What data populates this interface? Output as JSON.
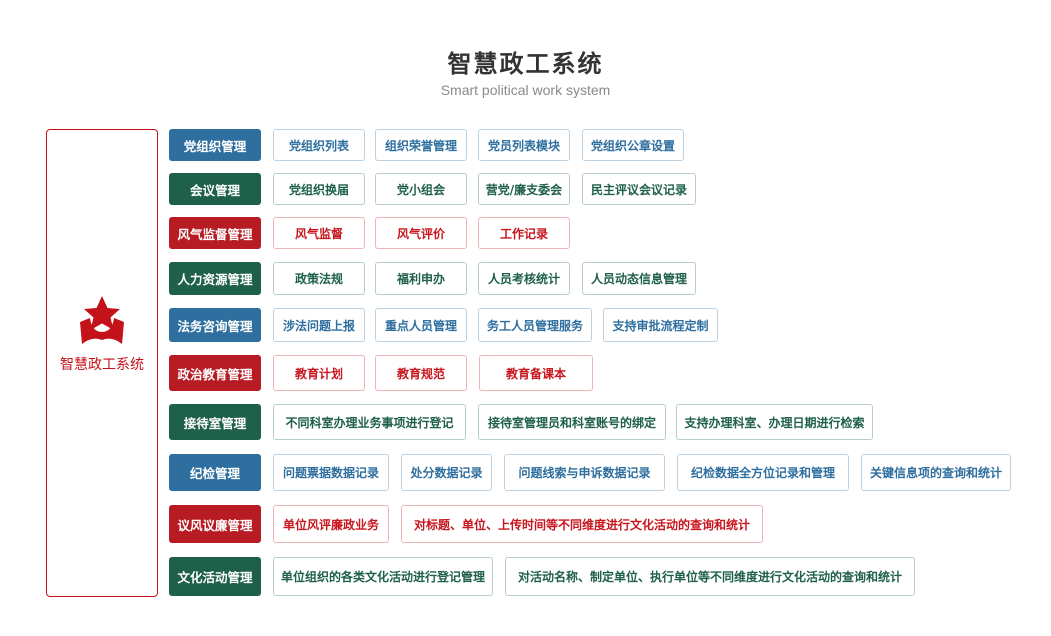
{
  "header": {
    "title": "智慧政工系统",
    "subtitle": "Smart political work system"
  },
  "sidebar": {
    "label": "智慧政工系统",
    "icon": "party-star-icon",
    "color": "#c4121b"
  },
  "colors": {
    "blue": "#2f6f9f",
    "green": "#1f604b",
    "red": "#b71c24"
  },
  "modules": [
    {
      "name": "党组织管理",
      "theme": "blue",
      "items": [
        "党组织列表",
        "组织荣誉管理",
        "党员列表模块",
        "党组织公章设置"
      ]
    },
    {
      "name": "会议管理",
      "theme": "green",
      "items": [
        "党组织换届",
        "党小组会",
        "营党/廉支委会",
        "民主评议会议记录"
      ]
    },
    {
      "name": "风气监督管理",
      "theme": "red",
      "items": [
        "风气监督",
        "风气评价",
        "工作记录"
      ]
    },
    {
      "name": "人力资源管理",
      "theme": "green",
      "items": [
        "政策法规",
        "福利申办",
        "人员考核统计",
        "人员动态信息管理"
      ]
    },
    {
      "name": "法务咨询管理",
      "theme": "blue",
      "items": [
        "涉法问题上报",
        "重点人员管理",
        "务工人员管理服务",
        "支持审批流程定制"
      ]
    },
    {
      "name": "政治教育管理",
      "theme": "red",
      "items": [
        "教育计划",
        "教育规范",
        "教育备课本"
      ]
    },
    {
      "name": "接待室管理",
      "theme": "green",
      "items": [
        "不同科室办理业务事项进行登记",
        "接待室管理员和科室账号的绑定",
        "支持办理科室、办理日期进行检索"
      ]
    },
    {
      "name": "纪检管理",
      "theme": "blue",
      "items": [
        "问题票据数据记录",
        "处分数据记录",
        "问题线索与申诉数据记录",
        "纪检数据全方位记录和管理",
        "关键信息项的查询和统计"
      ]
    },
    {
      "name": "议风议廉管理",
      "theme": "red",
      "items": [
        "单位风评廉政业务",
        "对标题、单位、上传时间等不同维度进行文化活动的查询和统计"
      ]
    },
    {
      "name": "文化活动管理",
      "theme": "green",
      "items": [
        "单位组织的各类文化活动进行登记管理",
        "对活动名称、制定单位、执行单位等不同维度进行文化活动的查询和统计"
      ]
    }
  ]
}
